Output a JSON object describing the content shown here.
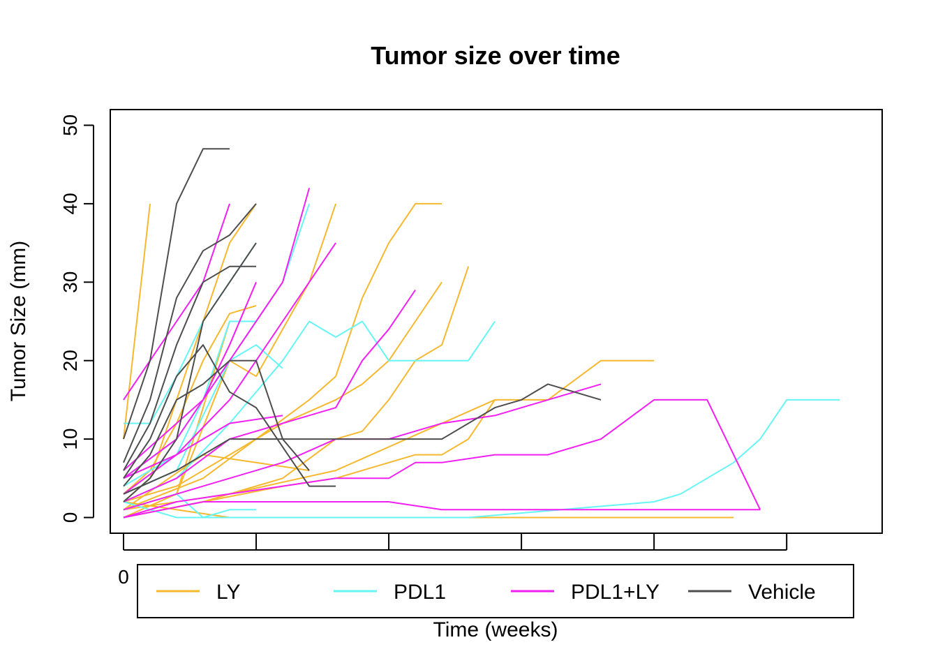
{
  "chart_data": {
    "type": "line",
    "title": "Tumor size over time",
    "xlabel": "Time (weeks)",
    "ylabel": "Tumor Size (mm)",
    "xlim": [
      -0.5,
      28.6
    ],
    "ylim": [
      -2,
      52
    ],
    "yticks": [
      0,
      10,
      20,
      30,
      40,
      50
    ],
    "xticks": [
      0,
      5,
      10,
      15,
      20,
      25
    ],
    "xtick_labels": [
      "0",
      "",
      "",
      "",
      "",
      ""
    ],
    "legend_position": "bottom, overlapping the x-axis",
    "groups": [
      {
        "name": "LY",
        "color": "#F5B82E"
      },
      {
        "name": "PDL1",
        "color": "#66F5F5"
      },
      {
        "name": "PDL1+LY",
        "color": "#F21FF2"
      },
      {
        "name": "Vehicle",
        "color": "#4D4D4D"
      }
    ],
    "series": [
      {
        "group": "LY",
        "x": [
          0,
          1
        ],
        "y": [
          10,
          40
        ]
      },
      {
        "group": "LY",
        "x": [
          0,
          1,
          2,
          3,
          4,
          5
        ],
        "y": [
          2,
          5,
          15,
          25,
          35,
          40
        ]
      },
      {
        "group": "LY",
        "x": [
          0,
          1,
          2,
          3,
          4,
          5
        ],
        "y": [
          3,
          6,
          12,
          20,
          26,
          27
        ]
      },
      {
        "group": "LY",
        "x": [
          0,
          2,
          4,
          5
        ],
        "y": [
          1,
          3,
          25,
          25
        ]
      },
      {
        "group": "LY",
        "x": [
          0,
          2,
          4,
          5,
          7,
          8
        ],
        "y": [
          0,
          3,
          20,
          18,
          30,
          40
        ]
      },
      {
        "group": "LY",
        "x": [
          0,
          3,
          5,
          7,
          8,
          9,
          10,
          11,
          12
        ],
        "y": [
          1,
          5,
          10,
          15,
          18,
          28,
          35,
          40,
          40
        ]
      },
      {
        "group": "LY",
        "x": [
          0,
          2,
          4,
          6,
          8,
          9,
          10,
          11,
          12
        ],
        "y": [
          2,
          4,
          8,
          12,
          15,
          17,
          20,
          25,
          30
        ]
      },
      {
        "group": "LY",
        "x": [
          0,
          3,
          6,
          8,
          9,
          10,
          11,
          12,
          13
        ],
        "y": [
          0,
          2,
          5,
          10,
          11,
          15,
          20,
          22,
          32
        ]
      },
      {
        "group": "LY",
        "x": [
          0,
          4,
          8,
          12,
          14,
          16,
          18,
          20
        ],
        "y": [
          1,
          3,
          6,
          12,
          15,
          15,
          20,
          20
        ]
      },
      {
        "group": "LY",
        "x": [
          0,
          3,
          6,
          8,
          9,
          10,
          11,
          12,
          13,
          14
        ],
        "y": [
          0,
          2,
          4,
          5,
          6,
          7,
          8,
          8,
          10,
          15
        ]
      },
      {
        "group": "LY",
        "x": [
          0,
          2,
          4,
          6,
          23
        ],
        "y": [
          2,
          1,
          0,
          0,
          0
        ]
      },
      {
        "group": "LY",
        "x": [
          0,
          3,
          5,
          7
        ],
        "y": [
          1,
          8,
          7,
          6
        ]
      },
      {
        "group": "PDL1",
        "x": [
          0,
          1,
          2,
          3,
          4,
          5
        ],
        "y": [
          12,
          12,
          18,
          25,
          30,
          35
        ]
      },
      {
        "group": "PDL1",
        "x": [
          0,
          2,
          3,
          4,
          5
        ],
        "y": [
          4,
          8,
          15,
          25,
          25
        ]
      },
      {
        "group": "PDL1",
        "x": [
          0,
          2,
          4,
          6,
          7
        ],
        "y": [
          3,
          6,
          20,
          30,
          40
        ]
      },
      {
        "group": "PDL1",
        "x": [
          0,
          2,
          4,
          6,
          7,
          8,
          9,
          10,
          11,
          12,
          13,
          14
        ],
        "y": [
          2,
          5,
          12,
          20,
          25,
          23,
          25,
          20,
          20,
          20,
          20,
          25
        ]
      },
      {
        "group": "PDL1",
        "x": [
          0,
          2,
          3,
          4,
          5,
          6
        ],
        "y": [
          5,
          10,
          15,
          20,
          22,
          19
        ]
      },
      {
        "group": "PDL1",
        "x": [
          0,
          1,
          2,
          3,
          13,
          20,
          21,
          22,
          23,
          24,
          25,
          26,
          27
        ],
        "y": [
          2,
          1,
          0,
          0,
          0,
          2,
          3,
          5,
          7,
          10,
          15,
          15,
          15
        ]
      },
      {
        "group": "PDL1",
        "x": [
          0,
          2,
          3,
          4,
          5
        ],
        "y": [
          1,
          3,
          0,
          1,
          1
        ]
      },
      {
        "group": "PDL1+LY",
        "x": [
          0,
          1,
          2,
          3,
          4
        ],
        "y": [
          15,
          20,
          25,
          30,
          40
        ]
      },
      {
        "group": "PDL1+LY",
        "x": [
          0,
          2,
          4,
          6,
          7
        ],
        "y": [
          5,
          10,
          20,
          30,
          42
        ]
      },
      {
        "group": "PDL1+LY",
        "x": [
          0,
          2,
          4,
          6,
          8
        ],
        "y": [
          3,
          8,
          15,
          25,
          35
        ]
      },
      {
        "group": "PDL1+LY",
        "x": [
          0,
          2,
          4,
          6,
          8,
          9,
          10,
          11
        ],
        "y": [
          2,
          5,
          10,
          12,
          14,
          20,
          24,
          29
        ]
      },
      {
        "group": "PDL1+LY",
        "x": [
          0,
          3,
          6,
          8,
          10,
          12,
          14,
          16,
          18
        ],
        "y": [
          1,
          4,
          7,
          10,
          10,
          12,
          13,
          15,
          17
        ]
      },
      {
        "group": "PDL1+LY",
        "x": [
          0,
          2,
          4,
          6,
          8,
          9,
          10,
          11,
          12,
          14,
          16,
          18,
          20,
          22,
          24
        ],
        "y": [
          0,
          2,
          3,
          4,
          5,
          5,
          5,
          7,
          7,
          8,
          8,
          10,
          15,
          15,
          1
        ]
      },
      {
        "group": "PDL1+LY",
        "x": [
          0,
          3,
          6,
          8,
          10,
          12,
          14,
          16,
          18,
          20,
          22,
          24
        ],
        "y": [
          0,
          2,
          2,
          2,
          2,
          1,
          1,
          1,
          1,
          1,
          1,
          1
        ]
      },
      {
        "group": "PDL1+LY",
        "x": [
          0,
          2,
          4,
          6
        ],
        "y": [
          5,
          8,
          12,
          13
        ]
      },
      {
        "group": "PDL1+LY",
        "x": [
          0,
          2,
          3,
          4,
          5
        ],
        "y": [
          6,
          12,
          15,
          22,
          30
        ]
      },
      {
        "group": "Vehicle",
        "x": [
          0,
          1,
          2,
          3,
          4
        ],
        "y": [
          10,
          20,
          40,
          47,
          47
        ]
      },
      {
        "group": "Vehicle",
        "x": [
          0,
          1,
          2,
          3,
          4,
          5
        ],
        "y": [
          7,
          15,
          28,
          34,
          36,
          40
        ]
      },
      {
        "group": "Vehicle",
        "x": [
          0,
          1,
          2,
          3,
          4,
          5
        ],
        "y": [
          6,
          12,
          22,
          30,
          32,
          32
        ]
      },
      {
        "group": "Vehicle",
        "x": [
          0,
          1,
          2,
          3,
          4,
          5,
          6,
          7,
          8
        ],
        "y": [
          5,
          10,
          18,
          22,
          16,
          14,
          9,
          4,
          4
        ]
      },
      {
        "group": "Vehicle",
        "x": [
          0,
          2,
          4,
          6,
          8,
          10,
          12,
          14,
          15,
          16,
          18
        ],
        "y": [
          3,
          6,
          10,
          10,
          10,
          10,
          10,
          14,
          15,
          17,
          15
        ]
      },
      {
        "group": "Vehicle",
        "x": [
          0,
          1,
          2,
          3,
          4,
          5,
          6,
          7
        ],
        "y": [
          4,
          8,
          15,
          17,
          20,
          20,
          10,
          6
        ]
      },
      {
        "group": "Vehicle",
        "x": [
          0,
          1,
          2,
          3,
          4,
          5
        ],
        "y": [
          2,
          5,
          10,
          25,
          30,
          35
        ]
      }
    ]
  }
}
